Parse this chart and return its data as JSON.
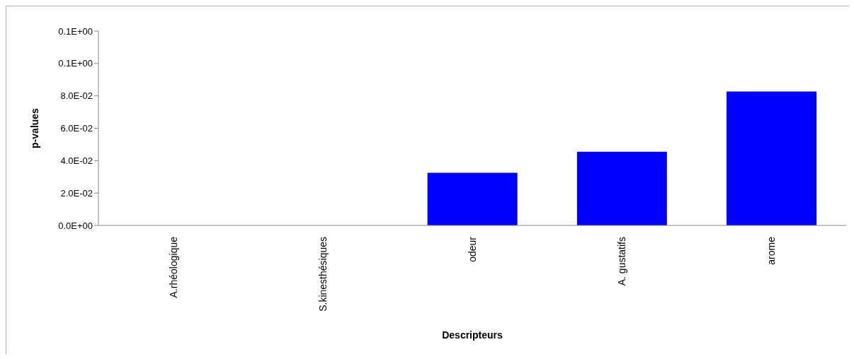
{
  "chart_data": {
    "type": "bar",
    "xlabel": "Descripteurs",
    "ylabel": "p-values",
    "categories": [
      "A.rhéologique",
      "S.kinesthésiques",
      "odeur",
      "A. gustatifs",
      "arome"
    ],
    "values": [
      0,
      0,
      0.0325,
      0.0455,
      0.0827
    ],
    "color": "#0000ff",
    "ylim": [
      0,
      0.12
    ],
    "yticks": [
      {
        "value": 0,
        "label": "0.0E+00"
      },
      {
        "value": 0.02,
        "label": "2.0E-02"
      },
      {
        "value": 0.04,
        "label": "4.0E-02"
      },
      {
        "value": 0.06,
        "label": "6.0E-02"
      },
      {
        "value": 0.08,
        "label": "8.0E-02"
      },
      {
        "value": 0.1,
        "label": "0.1E+00"
      },
      {
        "value": 0.12,
        "label": "0.1E+00"
      }
    ],
    "grid": false,
    "legend": false
  }
}
